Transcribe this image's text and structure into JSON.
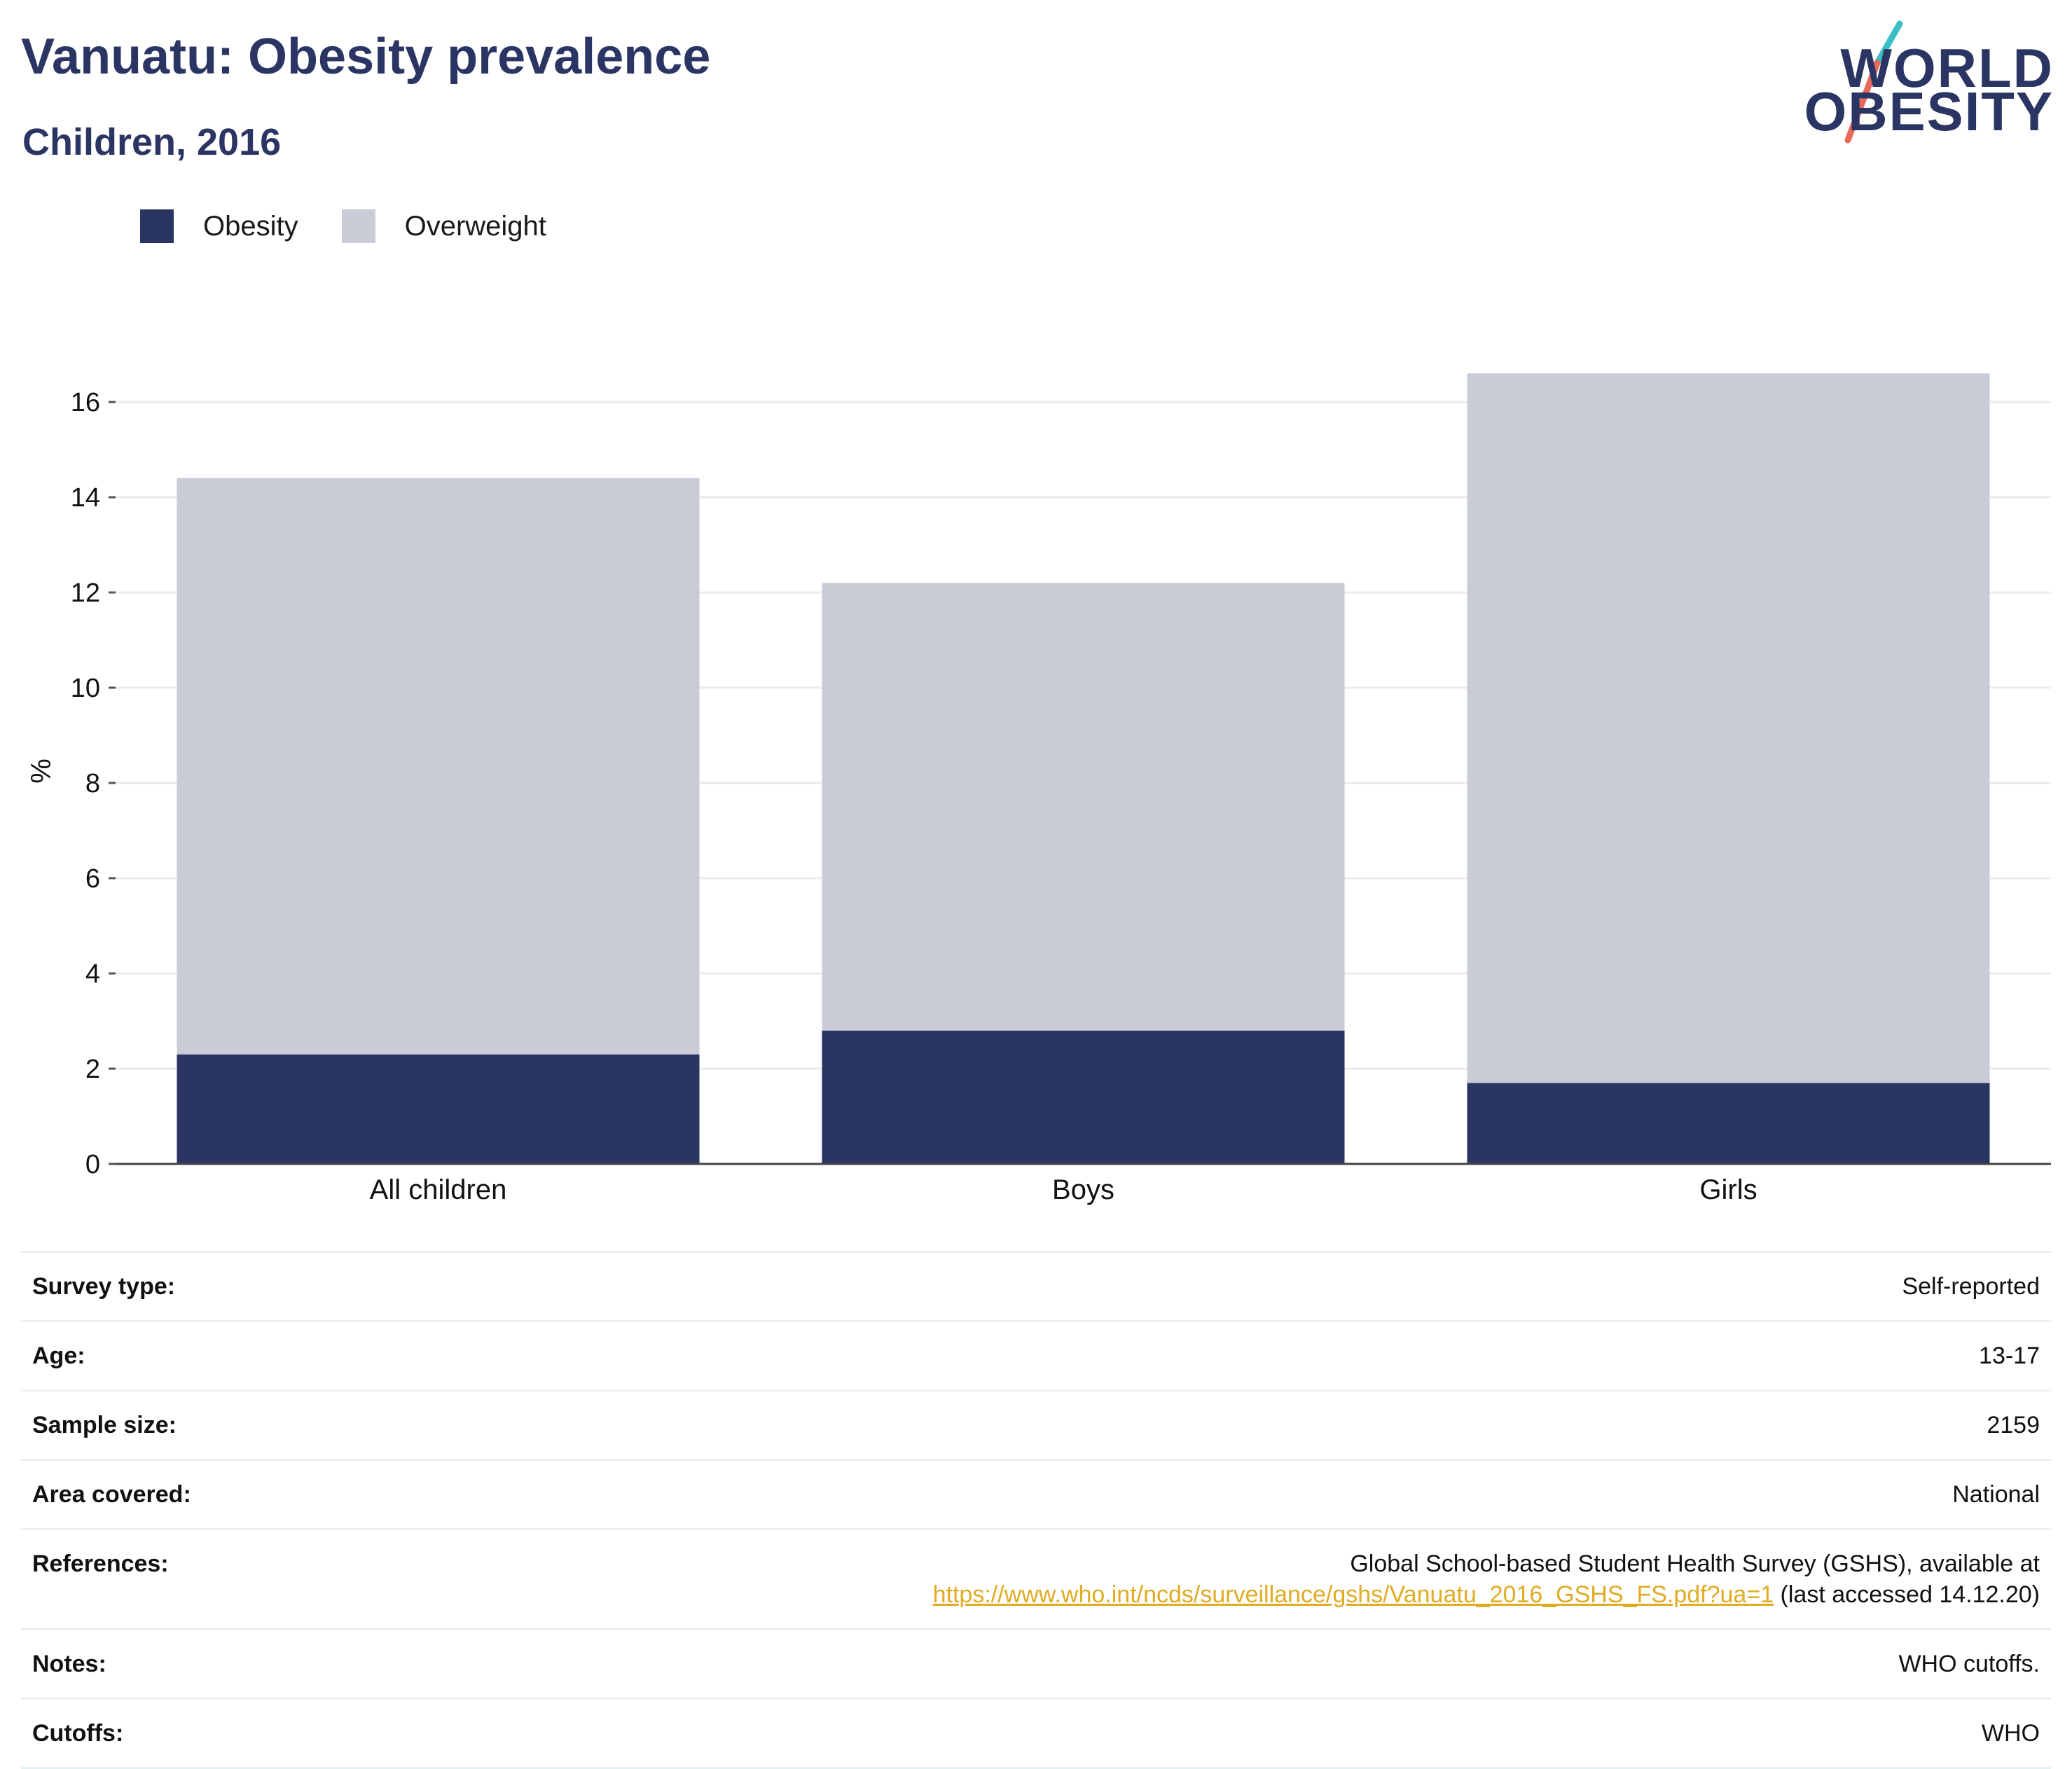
{
  "header": {
    "title": "Vanuatu: Obesity prevalence",
    "subtitle": "Children, 2016"
  },
  "logo": {
    "line1": "WORLD",
    "line2": "OBESITY",
    "accent_teal": "#3bbfc4",
    "accent_red": "#e8685a"
  },
  "legend": {
    "items": [
      {
        "label": "Obesity",
        "color": "#2b3563"
      },
      {
        "label": "Overweight",
        "color": "#c9cbd6"
      }
    ]
  },
  "chart_data": {
    "type": "bar",
    "stacked": true,
    "categories": [
      "All children",
      "Boys",
      "Girls"
    ],
    "series": [
      {
        "name": "Obesity",
        "values": [
          2.3,
          2.8,
          1.7
        ],
        "color": "#2b3563"
      },
      {
        "name": "Overweight",
        "values": [
          12.1,
          9.4,
          14.9
        ],
        "color": "#c9cbd6"
      }
    ],
    "xlabel": "",
    "ylabel": "%",
    "ylim": [
      0,
      16.5
    ],
    "yticks": [
      0,
      2,
      4,
      6,
      8,
      10,
      12,
      14,
      16
    ],
    "grid": true,
    "legend_position": "top-left"
  },
  "meta": {
    "rows": [
      {
        "label": "Survey type:",
        "value": "Self-reported"
      },
      {
        "label": "Age:",
        "value": "13-17"
      },
      {
        "label": "Sample size:",
        "value": "2159"
      },
      {
        "label": "Area covered:",
        "value": "National"
      }
    ],
    "references": {
      "label": "References:",
      "line1": "Global School-based Student Health Survey (GSHS), available at",
      "link": "https://www.who.int/ncds/surveillance/gshs/Vanuatu_2016_GSHS_FS.pdf?ua=1",
      "suffix": " (last accessed 14.12.20)"
    },
    "rows_after": [
      {
        "label": "Notes:",
        "value": "WHO cutoffs."
      },
      {
        "label": "Cutoffs:",
        "value": "WHO"
      }
    ]
  }
}
